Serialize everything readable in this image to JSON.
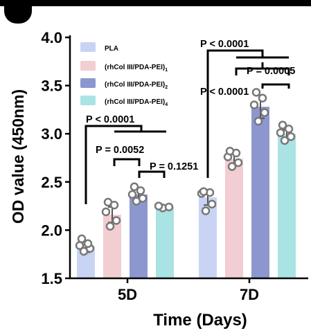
{
  "chart_data": {
    "type": "bar",
    "title": "",
    "xlabel": "Time (Days)",
    "ylabel": "OD value (450nm)",
    "ylim": [
      1.5,
      4.0
    ],
    "yticks": [
      1.5,
      2.0,
      2.5,
      3.0,
      3.5,
      4.0
    ],
    "ytick_labels": [
      "1.5",
      "2.0",
      "2.5",
      "3.0",
      "3.5",
      "4.0"
    ],
    "categories": [
      "5D",
      "7D"
    ],
    "legend_position": "top-left",
    "series": [
      {
        "name": "PLA",
        "sub": "",
        "color": "#c9d3f4",
        "values": [
          1.83,
          2.34
        ],
        "errors": [
          0.06,
          0.08
        ],
        "points": [
          [
            1.78,
            1.81,
            1.84,
            1.86,
            1.91
          ],
          [
            2.2,
            2.27,
            2.38,
            2.39,
            2.4
          ]
        ]
      },
      {
        "name": "(rhCol III/PDA-PEI)",
        "sub": "1",
        "color": "#f2cdd1",
        "values": [
          2.16,
          2.74
        ],
        "errors": [
          0.08,
          0.06
        ],
        "points": [
          [
            2.04,
            2.1,
            2.19,
            2.26,
            2.29
          ],
          [
            2.66,
            2.7,
            2.76,
            2.8,
            2.82
          ]
        ]
      },
      {
        "name": "(rhCol III/PDA-PEI)",
        "sub": "2",
        "color": "#8d97cf",
        "values": [
          2.37,
          3.28
        ],
        "errors": [
          0.06,
          0.12
        ],
        "points": [
          [
            2.3,
            2.33,
            2.37,
            2.41,
            2.45
          ],
          [
            3.13,
            3.22,
            3.3,
            3.37,
            3.43
          ]
        ]
      },
      {
        "name": "(rhCol III/PDA-PEI)",
        "sub": "4",
        "color": "#a9e3e4",
        "values": [
          2.24,
          3.0
        ],
        "errors": [
          0.01,
          0.04
        ],
        "points": [
          [
            2.23,
            2.24,
            2.25
          ],
          [
            2.93,
            2.97,
            3.01,
            3.05,
            3.09
          ]
        ]
      }
    ],
    "annotations": [
      {
        "text": "P < 0.0001",
        "group": "5D",
        "comparison": "PLA vs other groups"
      },
      {
        "text": "P = 0.0052",
        "group": "5D",
        "comparison": "(rhCol III/PDA-PEI)1 vs (rhCol III/PDA-PEI)2"
      },
      {
        "text": "P = 0.1251",
        "group": "5D",
        "comparison": "(rhCol III/PDA-PEI)2 vs (rhCol III/PDA-PEI)4"
      },
      {
        "text": "P < 0.0001",
        "group": "7D",
        "comparison": "PLA vs other groups"
      },
      {
        "text": "P = 0.0005",
        "group": "7D",
        "comparison": "(rhCol III/PDA-PEI)1 vs other groups"
      },
      {
        "text": "P < 0.0001",
        "group": "7D",
        "comparison": "(rhCol III/PDA-PEI)1 vs (rhCol III/PDA-PEI)2"
      }
    ]
  }
}
